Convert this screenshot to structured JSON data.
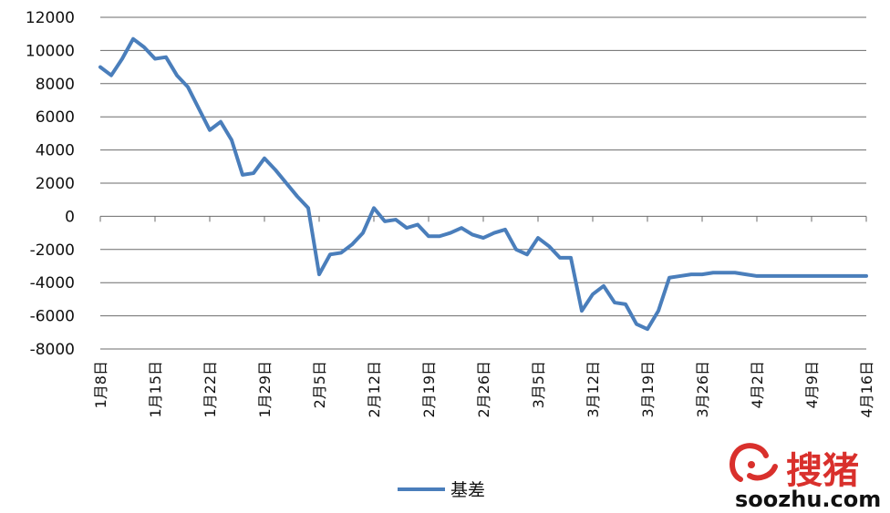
{
  "chart_data": {
    "type": "line",
    "x": [
      "1月8日",
      "1月9日",
      "1月10日",
      "1月11日",
      "1月12日",
      "1月15日",
      "1月16日",
      "1月17日",
      "1月18日",
      "1月19日",
      "1月22日",
      "1月23日",
      "1月24日",
      "1月25日",
      "1月26日",
      "1月29日",
      "1月30日",
      "1月31日",
      "2月1日",
      "2月2日",
      "2月5日",
      "2月6日",
      "2月7日",
      "2月8日",
      "2月9日",
      "2月12日",
      "2月13日",
      "2月14日",
      "2月15日",
      "2月16日",
      "2月19日",
      "2月20日",
      "2月21日",
      "2月22日",
      "2月23日",
      "2月26日",
      "2月27日",
      "2月28日",
      "3月1日",
      "3月2日",
      "3月5日",
      "3月6日",
      "3月7日",
      "3月8日",
      "3月9日",
      "3月12日",
      "3月13日",
      "3月14日",
      "3月15日",
      "3月16日",
      "3月19日",
      "3月20日",
      "3月21日",
      "3月22日",
      "3月23日",
      "3月26日",
      "3月27日",
      "3月28日",
      "3月29日",
      "3月30日",
      "4月2日",
      "4月3日",
      "4月4日",
      "4月5日",
      "4月6日",
      "4月9日",
      "4月10日",
      "4月11日",
      "4月12日",
      "4月13日",
      "4月16日"
    ],
    "ticks": [
      "1月8日",
      "1月15日",
      "1月22日",
      "1月29日",
      "2月5日",
      "2月12日",
      "2月19日",
      "2月26日",
      "3月5日",
      "3月12日",
      "3月19日",
      "3月26日",
      "4月2日",
      "4月9日",
      "4月16日"
    ],
    "series": [
      {
        "name": "基差",
        "color": "#4a7ebb",
        "values": [
          9000,
          8500,
          9500,
          10700,
          10200,
          9500,
          9600,
          8500,
          7800,
          6500,
          5200,
          5700,
          4600,
          2500,
          2600,
          3500,
          2800,
          2000,
          1200,
          500,
          -3500,
          -2300,
          -2200,
          -1700,
          -1000,
          500,
          -300,
          -200,
          -700,
          -500,
          -1200,
          -1200,
          -1000,
          -700,
          -1100,
          -1300,
          -1000,
          -800,
          -2000,
          -2300,
          -1300,
          -1800,
          -2500,
          -2500,
          -5700,
          -4700,
          -4200,
          -5200,
          -5300,
          -6500,
          -6800,
          -5700,
          -3700,
          -3600,
          -3500,
          -3500,
          -3400,
          -3400,
          -3400,
          -3500,
          -3600,
          -3600,
          -3600,
          -3600,
          -3600,
          -3600,
          -3600,
          -3600,
          -3600,
          -3600,
          -3600
        ]
      }
    ],
    "ylim": [
      -8000,
      12000
    ],
    "yticks": [
      "12000",
      "10000",
      "8000",
      "6000",
      "4000",
      "2000",
      "0",
      "-2000",
      "-4000",
      "-6000",
      "-8000"
    ],
    "grid": true,
    "legend": "bottom-center"
  },
  "watermark": {
    "chinese": "搜猪",
    "domain": "soozhu.com",
    "color": "#d9302c"
  }
}
